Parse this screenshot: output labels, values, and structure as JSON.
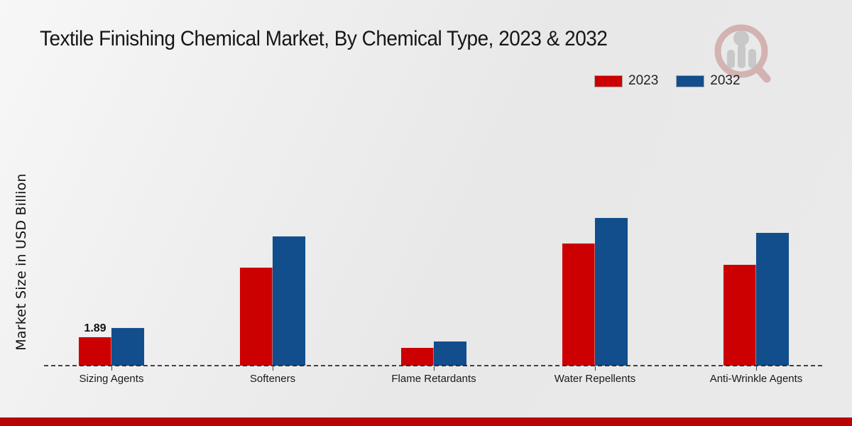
{
  "page": {
    "title": "Textile Finishing Chemical Market, By Chemical Type, 2023 & 2032"
  },
  "chart_data": {
    "type": "bar",
    "title": "Textile Finishing Chemical Market, By Chemical Type, 2023 & 2032",
    "xlabel": "",
    "ylabel": "Market Size in USD Billion",
    "categories": [
      "Sizing Agents",
      "Softeners",
      "Flame Retardants",
      "Water Repellents",
      "Anti-Wrinkle Agents"
    ],
    "series": [
      {
        "name": "2023",
        "color": "#cc0000",
        "values": [
          1.89,
          6.5,
          1.2,
          8.1,
          6.7
        ]
      },
      {
        "name": "2032",
        "color": "#124e8c",
        "values": [
          2.5,
          8.6,
          1.6,
          9.8,
          8.8
        ]
      }
    ],
    "annotations": [
      {
        "text": "1.89",
        "category_index": 0,
        "series_index": 0
      }
    ],
    "ylim": [
      0,
      10.5
    ],
    "grid": false,
    "legend_position": "top-right",
    "baseline_style": "dashed",
    "unit": "USD Billion"
  },
  "branding": {
    "logo_icon": "magnifier-bar-chart-watermark-icon",
    "footer_color": "#b80404",
    "logo_ring_color": "#b25b5b",
    "logo_bar_color": "#c3c3c3"
  }
}
